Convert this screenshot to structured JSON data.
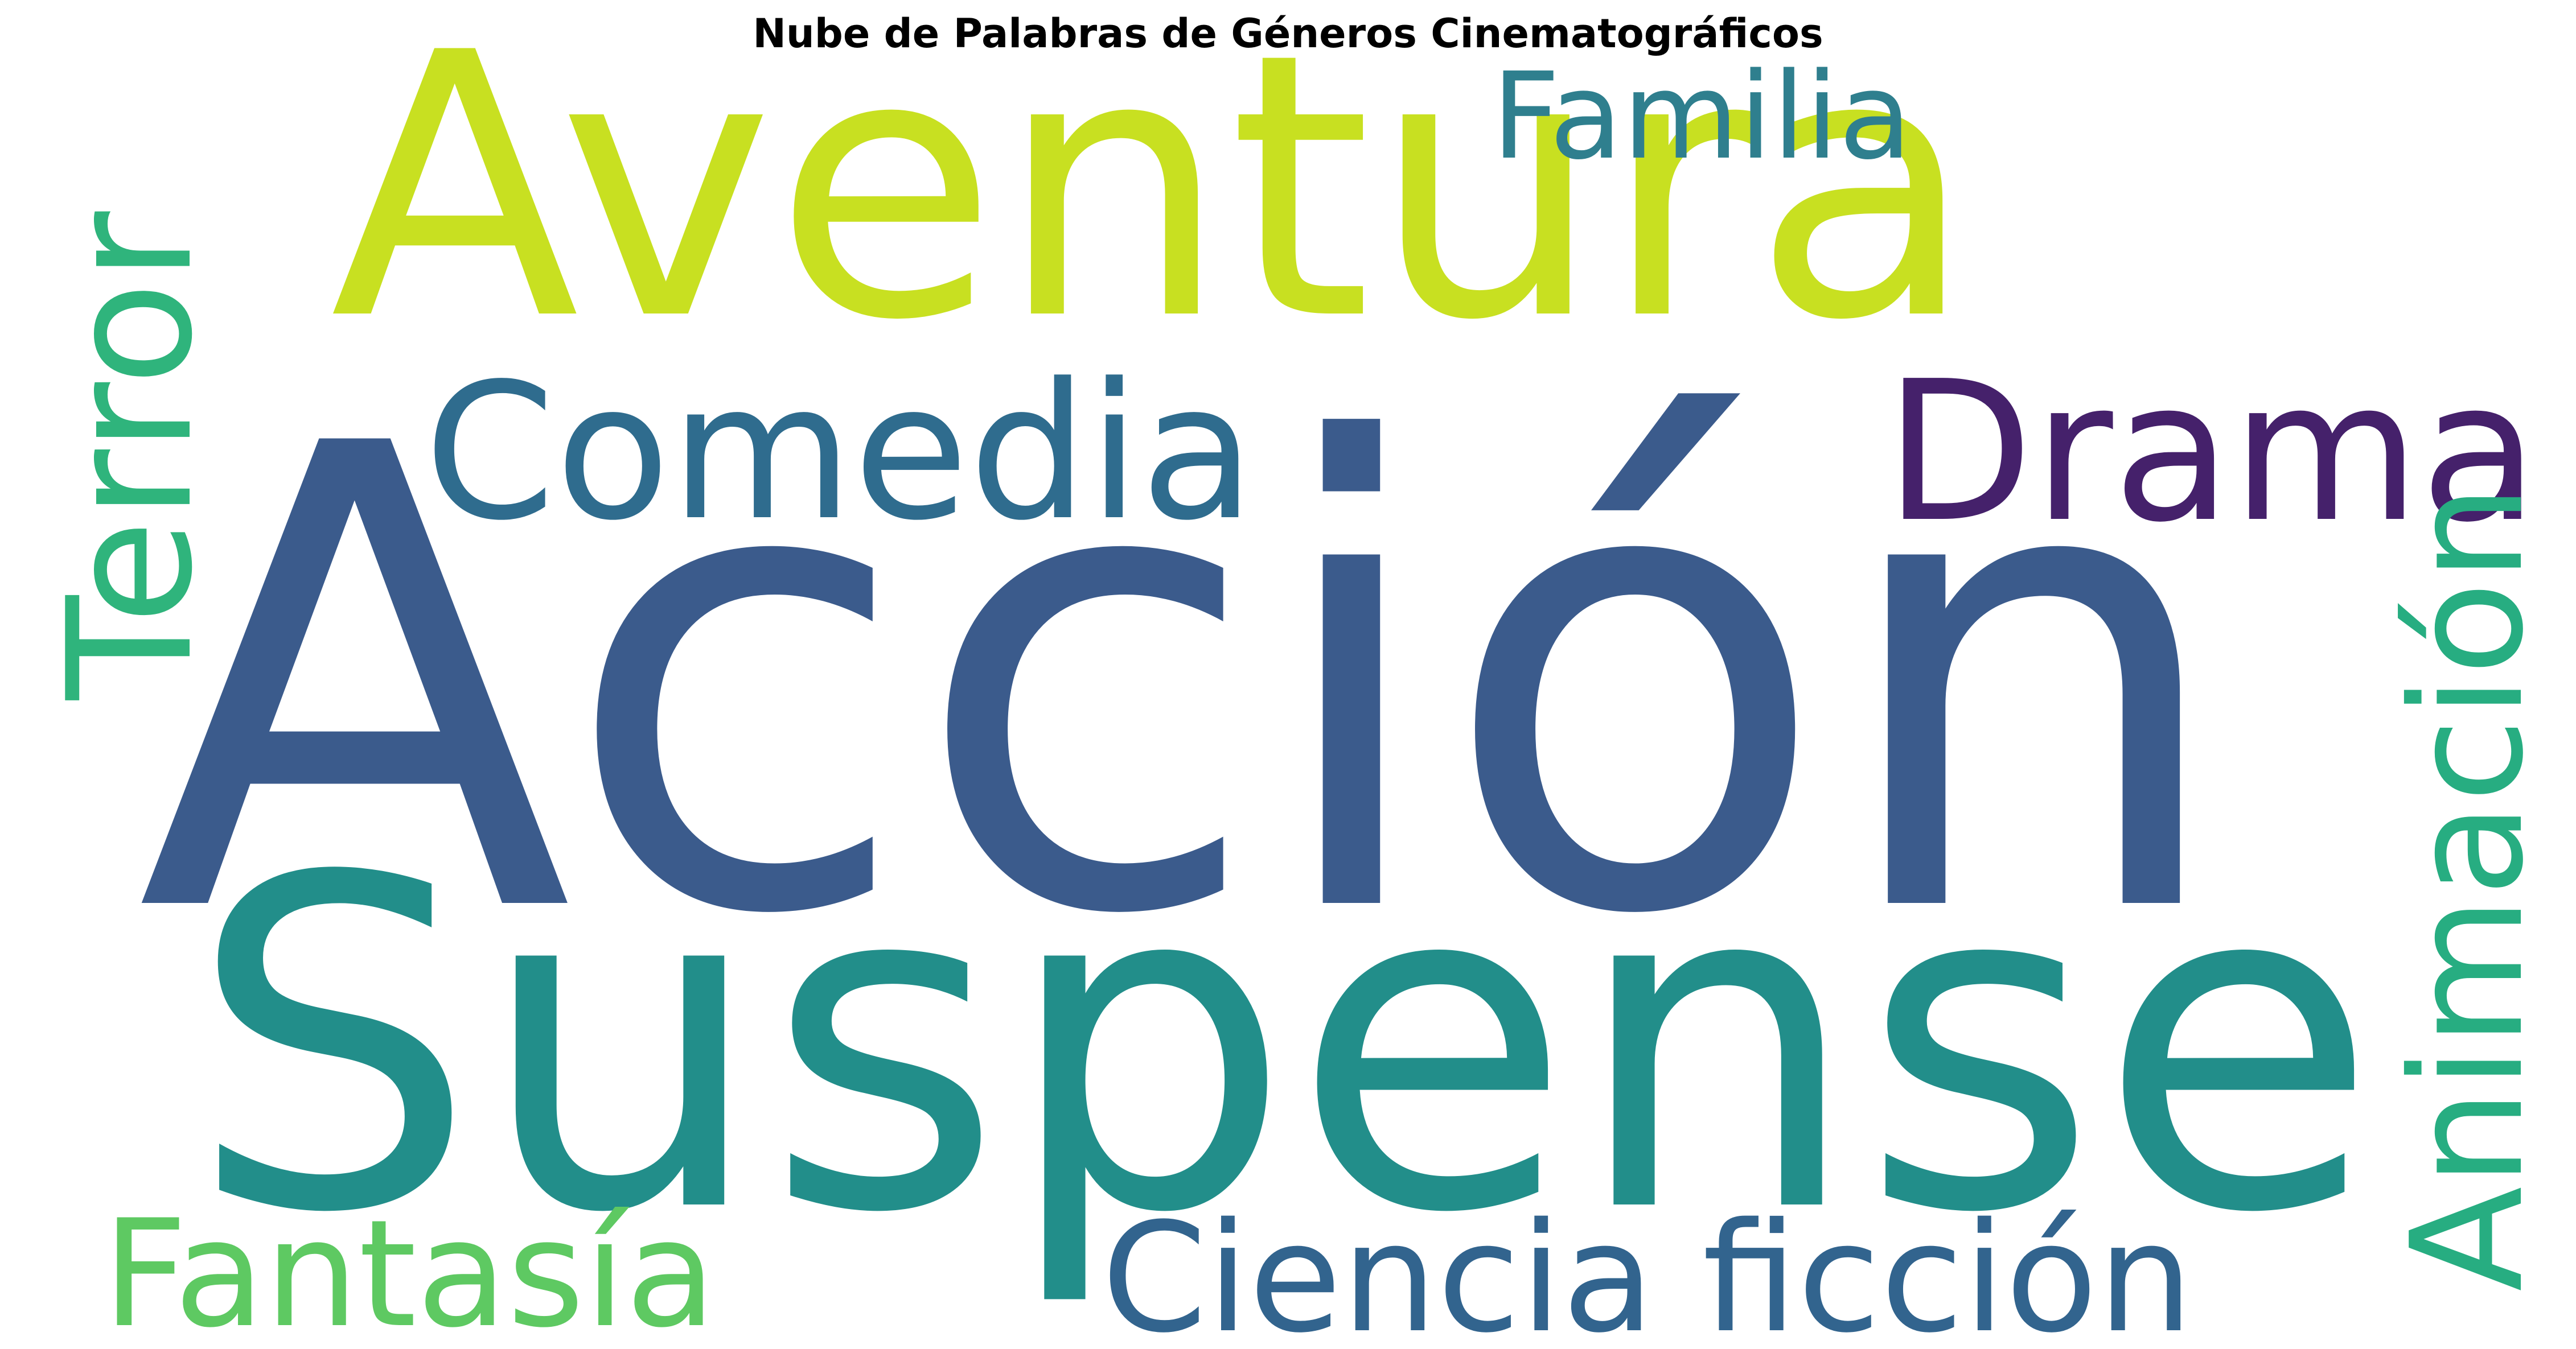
{
  "title": "Nube de Palabras de Géneros Cinematográficos",
  "words": [
    {
      "id": "word-accion",
      "text": "Acción",
      "color": "#3b5b8c",
      "orientation": "horizontal"
    },
    {
      "id": "word-aventura",
      "text": "Aventura",
      "color": "#c8e021",
      "orientation": "horizontal"
    },
    {
      "id": "word-suspense",
      "text": "Suspense",
      "color": "#228e8a",
      "orientation": "horizontal"
    },
    {
      "id": "word-comedia",
      "text": "Comedia",
      "color": "#2f6c8e",
      "orientation": "horizontal"
    },
    {
      "id": "word-drama",
      "text": "Drama",
      "color": "#45216b",
      "orientation": "horizontal"
    },
    {
      "id": "word-terror",
      "text": "Terror",
      "color": "#2fb47c",
      "orientation": "vertical"
    },
    {
      "id": "word-familia",
      "text": "Familia",
      "color": "#2f7f8e",
      "orientation": "horizontal"
    },
    {
      "id": "word-animacion",
      "text": "Animación",
      "color": "#27ad81",
      "orientation": "vertical"
    },
    {
      "id": "word-fantasia",
      "text": "Fantasía",
      "color": "#5ec962",
      "orientation": "horizontal"
    },
    {
      "id": "word-ciencia-ficcion",
      "text": "Ciencia ficción",
      "color": "#32648e",
      "orientation": "horizontal"
    }
  ]
}
